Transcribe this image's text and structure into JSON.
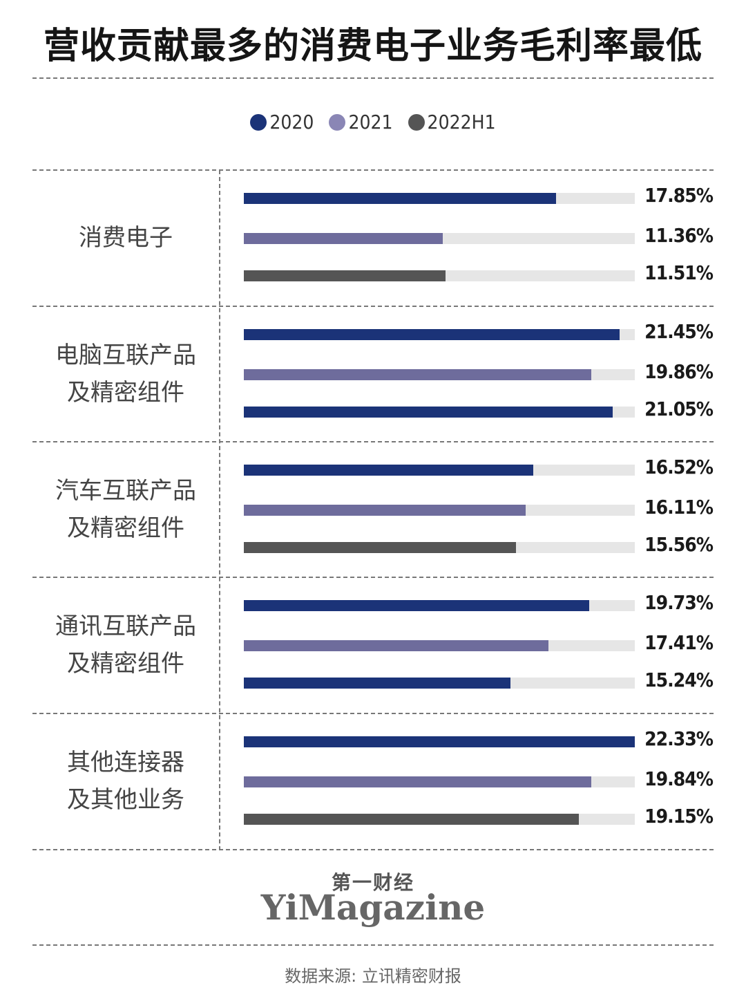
{
  "title": "营收贡献最多的消费电子业务毛利率最低",
  "legend": [
    {
      "label": "2020",
      "color": "#1b3378"
    },
    {
      "label": "2021",
      "color": "#8a86b5"
    },
    {
      "label": "2022H1",
      "color": "#555555"
    }
  ],
  "brand": {
    "cn": "第一财经",
    "en": "YiMagazine"
  },
  "source": "数据来源: 立讯精密财报",
  "chart_data": {
    "type": "bar",
    "orientation": "horizontal",
    "title": "营收贡献最多的消费电子业务毛利率最低",
    "legend_position": "top-center",
    "xlim": [
      0,
      22.33
    ],
    "unit": "%",
    "categories": [
      [
        "消费电子"
      ],
      [
        "电脑互联产品",
        "及精密组件"
      ],
      [
        "汽车互联产品",
        "及精密组件"
      ],
      [
        "通讯互联产品",
        "及精密组件"
      ],
      [
        "其他连接器",
        "及其他业务"
      ]
    ],
    "series": [
      {
        "name": "2020",
        "values": [
          17.85,
          21.45,
          16.52,
          19.73,
          22.33
        ]
      },
      {
        "name": "2021",
        "values": [
          11.36,
          19.86,
          16.11,
          17.41,
          19.84
        ]
      },
      {
        "name": "2022H1",
        "values": [
          11.51,
          21.05,
          15.56,
          15.24,
          19.15
        ]
      }
    ],
    "labels": [
      [
        "17.85%",
        "11.36%",
        "11.51%"
      ],
      [
        "21.45%",
        "19.86%",
        "21.05%"
      ],
      [
        "16.52%",
        "16.11%",
        "15.56%"
      ],
      [
        "19.73%",
        "17.41%",
        "15.24%"
      ],
      [
        "22.33%",
        "19.84%",
        "19.15%"
      ]
    ],
    "bar_colors": [
      [
        "#1b3378",
        "#6e6c9c",
        "#555555"
      ],
      [
        "#1b3378",
        "#6e6c9c",
        "#1b3378"
      ],
      [
        "#1b3378",
        "#6e6c9c",
        "#555555"
      ],
      [
        "#1b3378",
        "#6e6c9c",
        "#1b3378"
      ],
      [
        "#1b3378",
        "#6e6c9c",
        "#555555"
      ]
    ]
  }
}
